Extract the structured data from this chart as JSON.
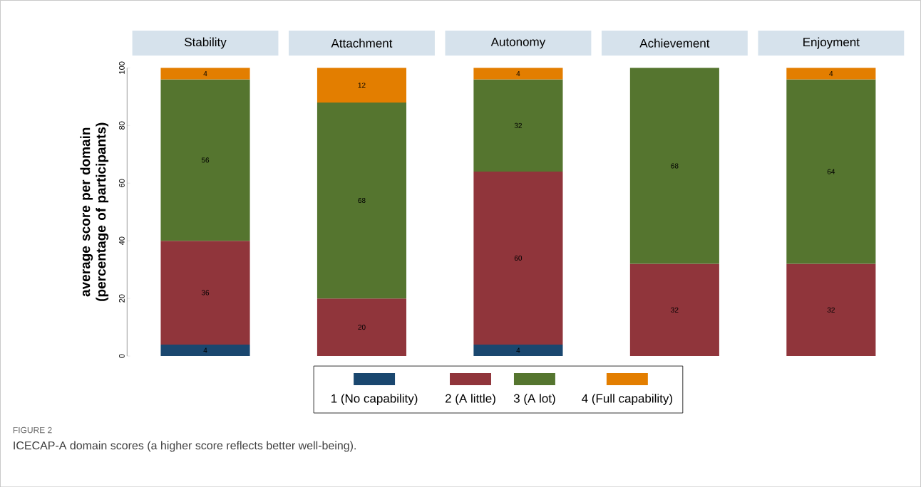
{
  "chart_data": {
    "type": "bar",
    "stacked": true,
    "ylabel": "average score per domain (percentage of participants)",
    "categories": [
      "Stability",
      "Attachment",
      "Autonomy",
      "Achievement",
      "Enjoyment"
    ],
    "series": [
      {
        "name": "1 (No capability)",
        "color": "#1a476f",
        "values": [
          4,
          null,
          4,
          null,
          null
        ]
      },
      {
        "name": "2 (A little)",
        "color": "#90353b",
        "values": [
          36,
          20,
          60,
          32,
          32
        ]
      },
      {
        "name": "3 (A lot)",
        "color": "#55752f",
        "values": [
          56,
          68,
          32,
          68,
          64
        ]
      },
      {
        "name": "4 (Full capability)",
        "color": "#e37e00",
        "values": [
          4,
          12,
          4,
          null,
          4
        ]
      }
    ],
    "ylim": [
      0,
      100
    ],
    "yticks": [
      0,
      20,
      40,
      60,
      80,
      100
    ],
    "data_labels": true,
    "legend": "bottom",
    "grid": false,
    "annotations": [
      "FIGURE 2",
      "ICECAP-A domain scores (a higher score reflects better well-being)."
    ]
  }
}
